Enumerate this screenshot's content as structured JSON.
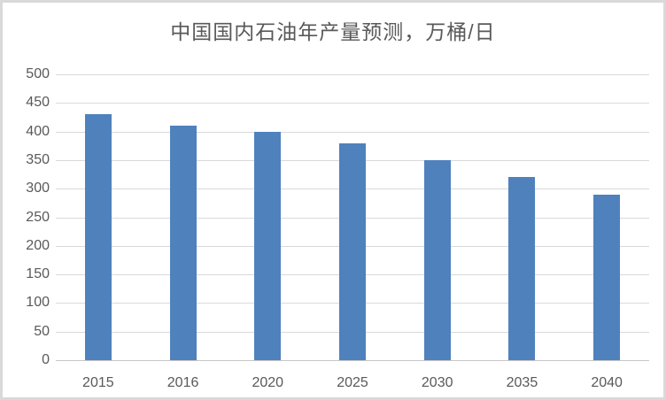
{
  "window": {
    "background_color": "#ffffff",
    "frame_border_color": "#d9d9d9"
  },
  "chart_data": {
    "type": "bar",
    "title": "中国国内石油年产量预测，万桶/日",
    "categories": [
      "2015",
      "2016",
      "2020",
      "2025",
      "2030",
      "2035",
      "2040"
    ],
    "values": [
      430,
      410,
      400,
      380,
      350,
      320,
      290
    ],
    "xlabel": "",
    "ylabel": "",
    "ylim": [
      0,
      500
    ],
    "ytick_interval": 50,
    "ytick_labels": [
      "0",
      "50",
      "100",
      "150",
      "200",
      "250",
      "300",
      "350",
      "400",
      "450",
      "500"
    ],
    "grid": true,
    "legend": false,
    "bar_color": "#4f81bd",
    "gridline_color": "#d9d9d9",
    "axis_line_color": "#c6c6c6",
    "tick_label_color": "#595959",
    "title_color": "#595959"
  }
}
